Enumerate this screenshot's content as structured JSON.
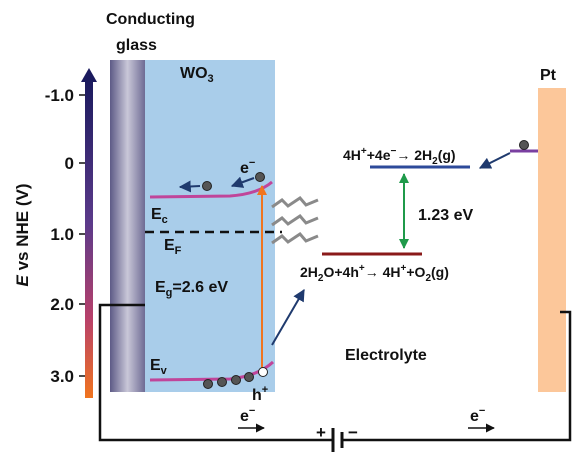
{
  "axis": {
    "label": [
      "E",
      " vs NHE (V)"
    ],
    "ticks": [
      "-1.0",
      "0",
      "1.0",
      "2.0",
      "3.0"
    ]
  },
  "conducting_glass": [
    "Conducting",
    "glass"
  ],
  "semiconductor": [
    "WO",
    "3"
  ],
  "counter_electrode": "Pt",
  "band_labels": {
    "excited_electron": [
      "e",
      "−"
    ],
    "conduction_band": [
      "E",
      "c"
    ],
    "fermi_level": [
      "E",
      "F"
    ],
    "band_gap": [
      "E",
      "g",
      "=2.6 eV"
    ],
    "valence_band": [
      "E",
      "v"
    ],
    "hole": [
      "h",
      "+"
    ]
  },
  "hydrogen_reaction": [
    "4H",
    "+",
    "+4e",
    "−",
    "→ 2H",
    "2",
    "(g)"
  ],
  "potential_difference": "1.23 eV",
  "oxygen_reaction": [
    "2H",
    "2",
    "O+4h",
    "+",
    "→ 4H",
    "+",
    "+O",
    "2",
    "(g)"
  ],
  "electrolyte": "Electrolyte",
  "circuit": {
    "left_electron": [
      "e",
      "−"
    ],
    "right_electron": [
      "e",
      "−"
    ],
    "positive": "+",
    "negative": "−"
  }
}
